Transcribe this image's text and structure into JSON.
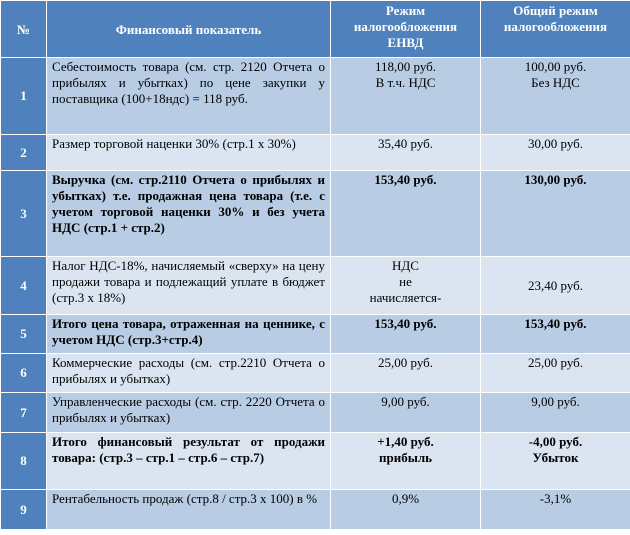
{
  "table": {
    "headers": {
      "num": "№",
      "indicator": "Финансовый показатель",
      "envd": "Режим налогообложения ЕНВД",
      "general": "Общий режим налогообложения"
    },
    "rows": [
      {
        "num": "1",
        "indicator": "Себестоимость товара (см. стр. 2120 Отчета о прибылях и убытках) по цене закупки у поставщика (100+18ндс) = 118 руб.",
        "envd": "118,00 руб.\nВ т.ч. НДС",
        "general": "100,00 руб.\nБез НДС"
      },
      {
        "num": "2",
        "indicator": "Размер торговой наценки 30% (стр.1 х 30%)",
        "envd": "35,40 руб.",
        "general": "30,00 руб."
      },
      {
        "num": "3",
        "indicator": "Выручка (см. стр.2110 Отчета о прибылях и убытках) т.е. продажная цена товара (т.е. с учетом торговой наценки 30% и без учета НДС (стр.1 + стр.2)",
        "envd": "153,40 руб.",
        "general": "130,00 руб."
      },
      {
        "num": "4",
        "indicator": "Налог НДС-18%, начисляемый «сверху» на цену продажи товара и подлежащий уплате в бюджет (стр.3 х 18%)",
        "envd": "НДС\nне\nначисляется-",
        "general": "23,40 руб."
      },
      {
        "num": "5",
        "indicator": "Итого цена товара, отраженная на ценнике, с учетом НДС (стр.3+стр.4)",
        "envd": "153,40 руб.",
        "general": "153,40 руб."
      },
      {
        "num": "6",
        "indicator": "Коммерческие расходы (см. стр.2210 Отчета о прибылях и убытках)",
        "envd": "25,00 руб.",
        "general": "25,00 руб."
      },
      {
        "num": "7",
        "indicator": "Управленческие расходы (см. стр. 2220 Отчета о прибылях и убытках)",
        "envd": "9,00 руб.",
        "general": "9,00 руб."
      },
      {
        "num": "8",
        "indicator": "Итого финансовый результат от продажи товара: (стр.3 – стр.1 – стр.6 – стр.7)",
        "envd": "+1,40 руб.\nприбыль",
        "general": "-4,00 руб.\nУбыток"
      },
      {
        "num": "9",
        "indicator": "Рентабельность продаж (стр.8 / стр.3 х 100) в %",
        "envd": "0,9%",
        "general": "-3,1%"
      }
    ]
  }
}
